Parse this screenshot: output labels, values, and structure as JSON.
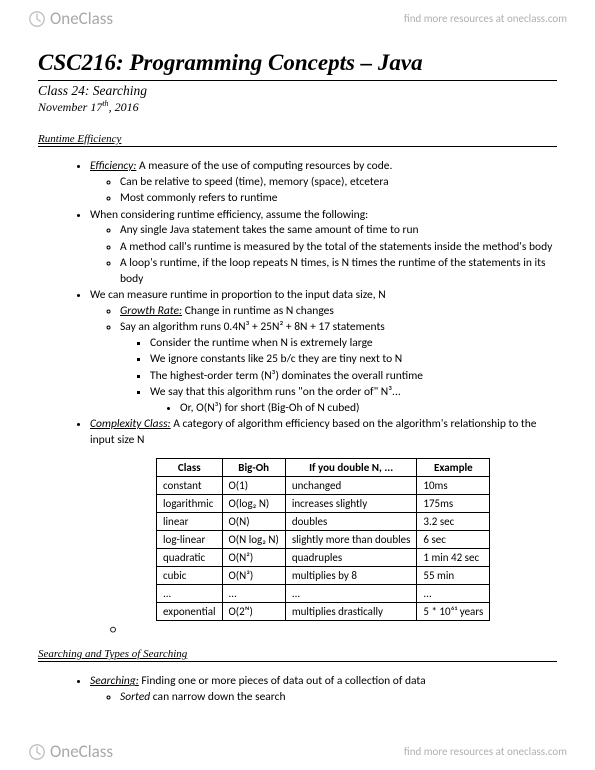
{
  "header": {
    "brand": "OneClass",
    "tagline": "find more resources at oneclass.com"
  },
  "footer": {
    "brand": "OneClass",
    "tagline": "find more resources at oneclass.com"
  },
  "title": "CSC216: Programming Concepts – Java",
  "class_line": "Class 24: Searching",
  "date_line": "November 17",
  "date_suffix": "th",
  "date_year": ", 2016",
  "section1": {
    "heading": "Runtime Efficiency",
    "b1_term": "Efficiency:",
    "b1_text": " A measure of the use of computing resources by code.",
    "b1_s1": "Can be relative to speed (time), memory (space), etcetera",
    "b1_s2": "Most commonly refers to runtime",
    "b2": "When considering runtime efficiency, assume the following:",
    "b2_s1": "Any single Java statement takes the same amount of time to run",
    "b2_s2": "A method call's runtime is measured by the total of the statements inside the method's body",
    "b2_s3": "A loop's runtime, if the loop repeats N times, is N times the runtime of the statements in its body",
    "b3": "We can measure runtime in proportion to the input data size, N",
    "b3_s1_term": "Growth Rate:",
    "b3_s1_text": " Change in runtime as N changes",
    "b3_s2": "Say an algorithm runs 0.4N³ + 25N² + 8N + 17 statements",
    "b3_s2_a": "Consider the runtime when N is extremely large",
    "b3_s2_b": "We ignore constants like 25 b/c they are tiny next to N",
    "b3_s2_c": "The highest-order term (N³) dominates the overall runtime",
    "b3_s2_d": "We say that this algorithm runs \"on the order of\" N³...",
    "b3_s2_d_i": "Or, O(N³) for short (Big-Oh of N cubed)",
    "b4_term": "Complexity Class:",
    "b4_text": " A category of algorithm efficiency based on the algorithm's relationship to the input size N"
  },
  "table": {
    "headers": [
      "Class",
      "Big-Oh",
      "If you double N, ...",
      "Example"
    ],
    "rows": [
      [
        "constant",
        "O(1)",
        "unchanged",
        "10ms"
      ],
      [
        "logarithmic",
        "O(log₂ N)",
        "increases slightly",
        "175ms"
      ],
      [
        "linear",
        "O(N)",
        "doubles",
        "3.2 sec"
      ],
      [
        "log-linear",
        "O(N log₂ N)",
        "slightly more than doubles",
        "6 sec"
      ],
      [
        "quadratic",
        "O(N²)",
        "quadruples",
        "1 min 42 sec"
      ],
      [
        "cubic",
        "O(N³)",
        "multiplies by 8",
        "55 min"
      ],
      [
        "...",
        "...",
        "...",
        "..."
      ],
      [
        "exponential",
        "O(2ᴺ)",
        "multiplies drastically",
        "5 * 10⁶¹ years"
      ]
    ]
  },
  "section2": {
    "heading": "Searching and Types of Searching",
    "b1_term": "Searching:",
    "b1_text": " Finding one or more pieces of data out of a collection of data",
    "b1_s1_italic": "Sorted",
    "b1_s1_rest": " can narrow down the search"
  }
}
